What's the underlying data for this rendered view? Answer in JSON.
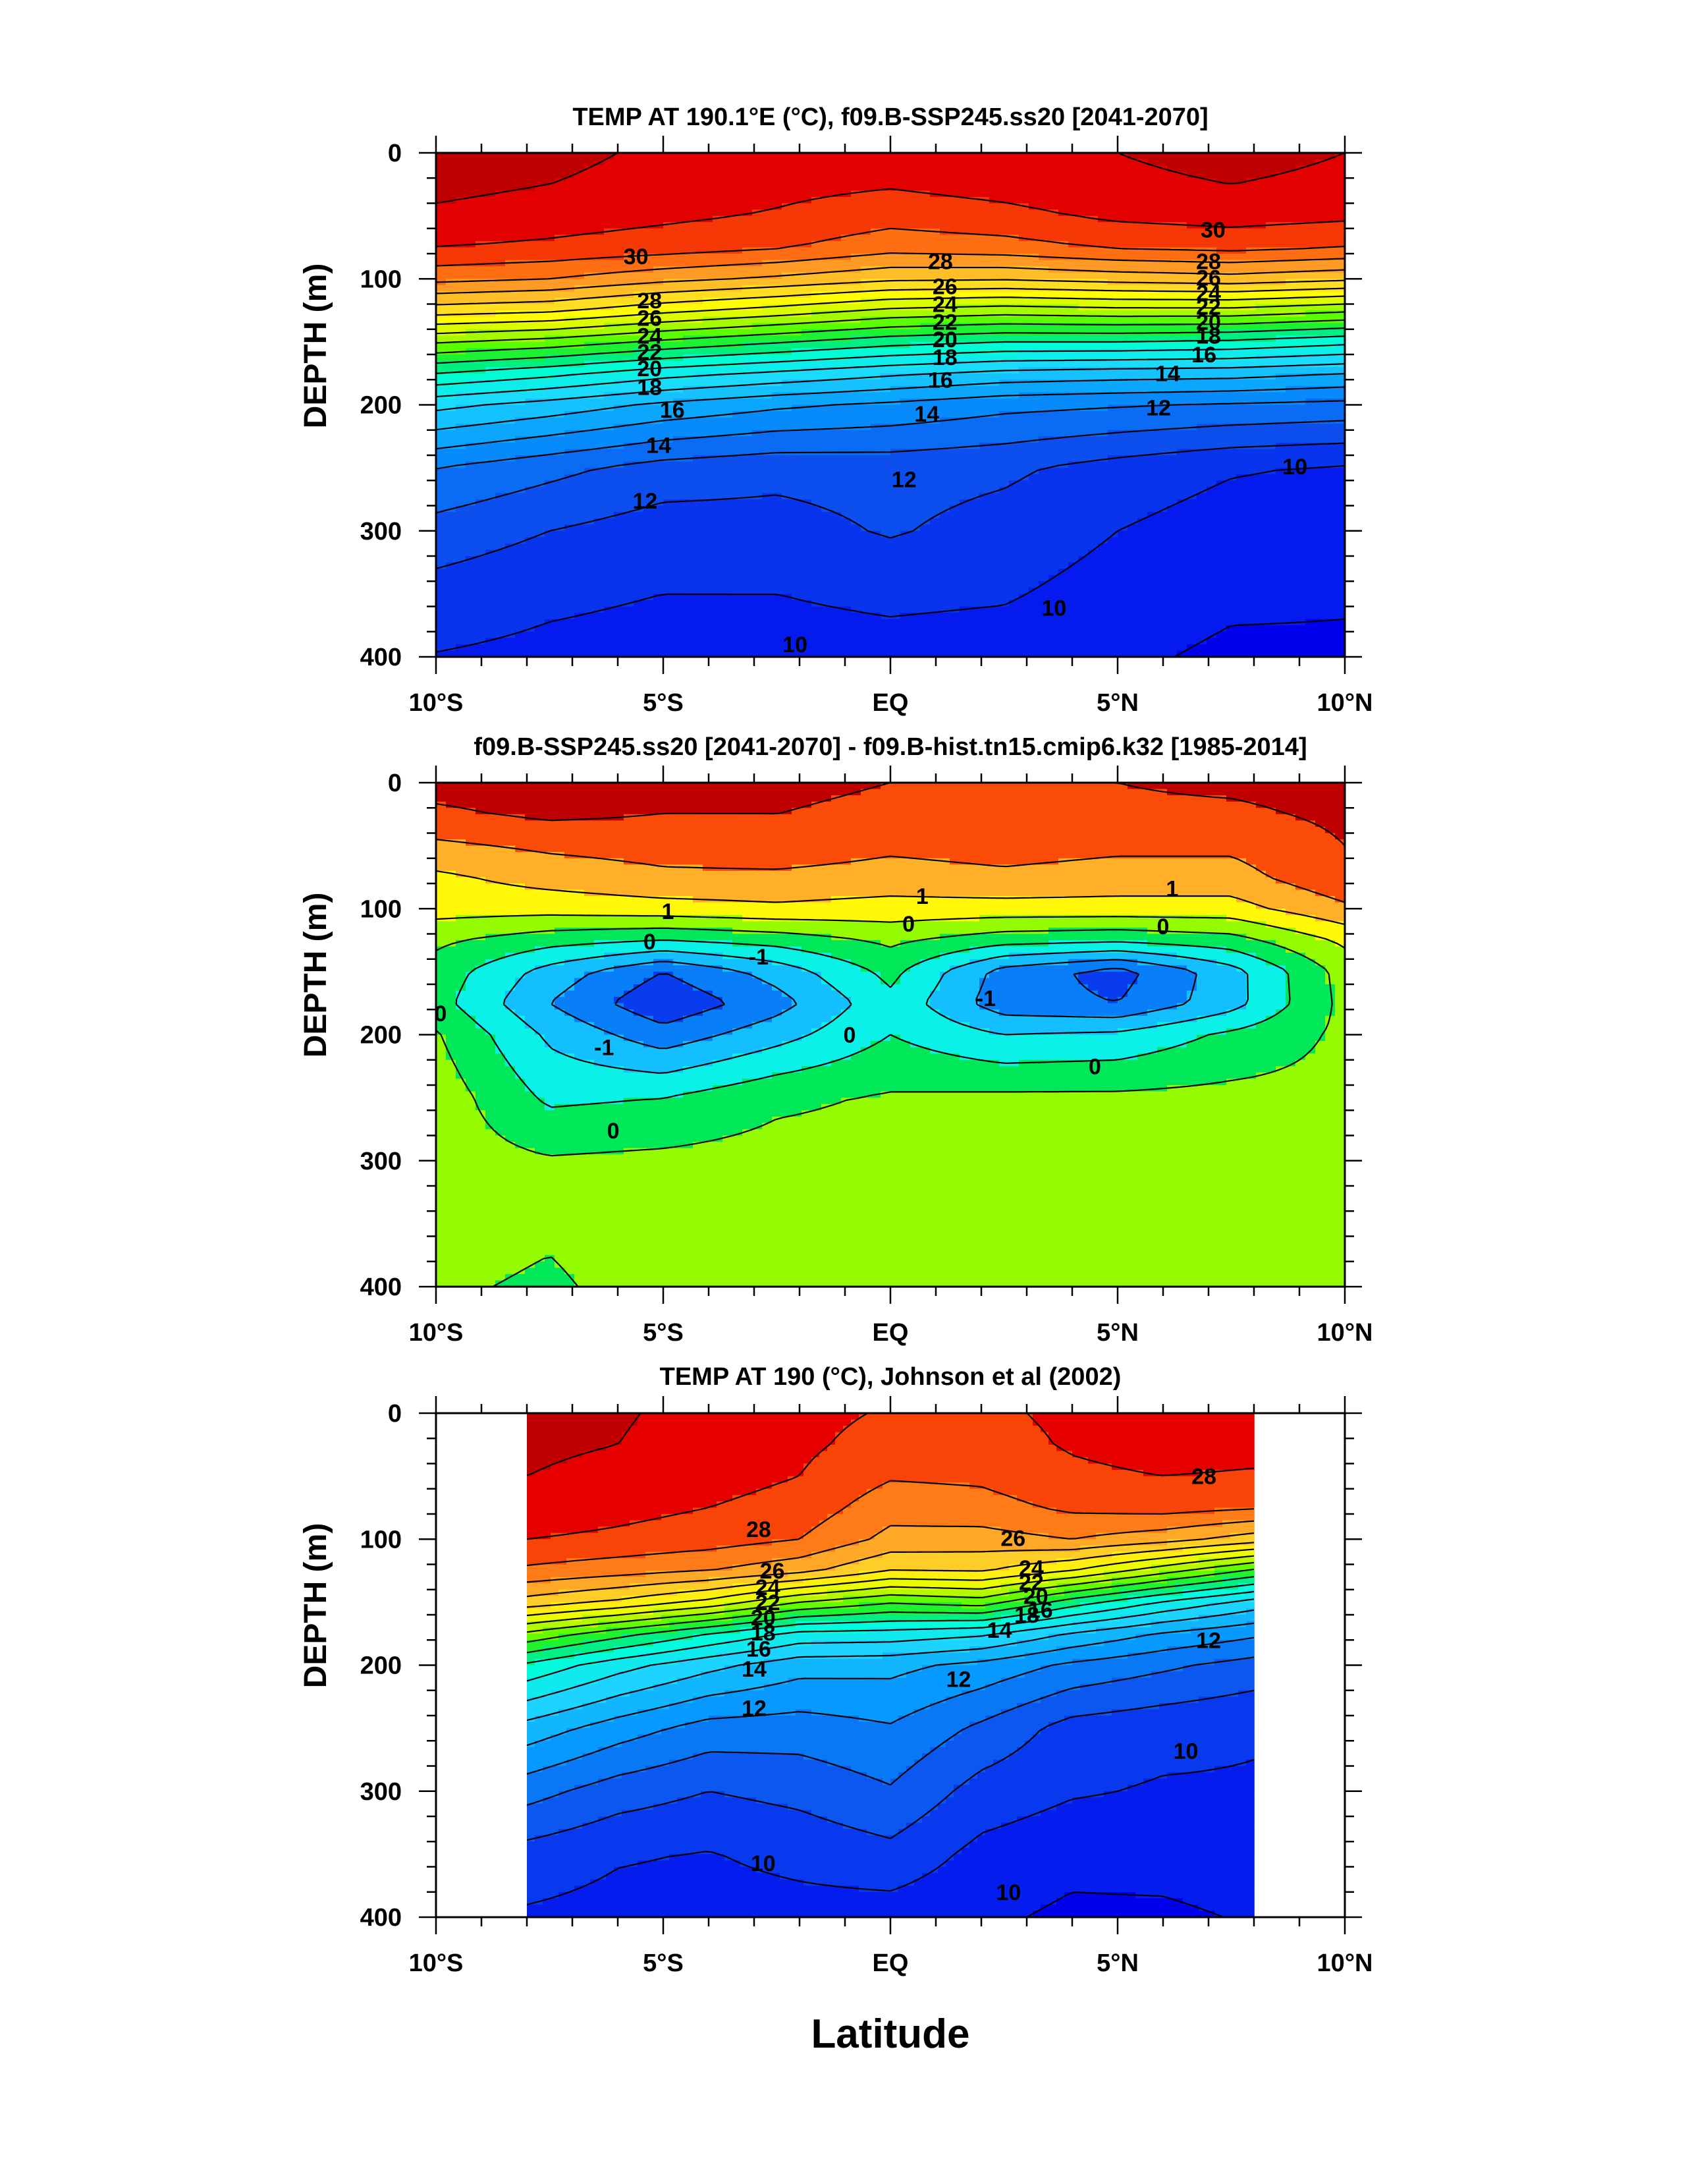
{
  "figure": {
    "xlabel": "Latitude"
  },
  "chart_data": [
    {
      "type": "heatmap",
      "title": "TEMP AT 190.1°E (°C), f09.B-SSP245.ss20 [2041-2070]",
      "ylabel": "DEPTH (m)",
      "xlim": [
        -10,
        10
      ],
      "ylim": [
        400,
        0
      ],
      "x_ticks": [
        "10°S",
        "5°S",
        "EQ",
        "5°N",
        "10°N"
      ],
      "x_tick_values": [
        -10,
        -5,
        0,
        5,
        10
      ],
      "y_ticks": [
        "0",
        "100",
        "200",
        "300",
        "400"
      ],
      "y_tick_values": [
        0,
        100,
        200,
        300,
        400
      ],
      "data_extent": [
        -10,
        10
      ],
      "levels": [
        9,
        10,
        11,
        12,
        13,
        14,
        15,
        16,
        17,
        18,
        19,
        20,
        21,
        22,
        23,
        24,
        25,
        26,
        27,
        28,
        29,
        30,
        31
      ],
      "x": [
        -10,
        -7.5,
        -5,
        -2.5,
        0,
        2.5,
        5,
        7.5,
        10
      ],
      "depth": [
        0,
        25,
        50,
        75,
        100,
        125,
        150,
        175,
        200,
        250,
        300,
        350,
        400
      ],
      "values": [
        [
          31.5,
          31.3,
          30.8,
          30.5,
          30.3,
          30.6,
          31.0,
          31.3,
          31.0
        ],
        [
          31.3,
          31.0,
          30.6,
          30.3,
          30.1,
          30.4,
          30.8,
          31.0,
          30.8
        ],
        [
          30.8,
          30.5,
          30.2,
          29.9,
          29.4,
          29.7,
          30.2,
          30.4,
          30.2
        ],
        [
          30.0,
          29.8,
          29.5,
          29.1,
          28.4,
          28.6,
          29.1,
          29.3,
          29.0
        ],
        [
          28.3,
          28.0,
          27.3,
          26.8,
          26.2,
          26.1,
          26.4,
          26.6,
          26.2
        ],
        [
          25.5,
          25.2,
          24.3,
          23.6,
          22.8,
          22.5,
          22.7,
          22.7,
          22.2
        ],
        [
          22.1,
          21.6,
          20.8,
          20.1,
          19.4,
          19.0,
          19.0,
          18.8,
          18.3
        ],
        [
          19.0,
          18.3,
          17.4,
          16.8,
          16.2,
          15.7,
          15.5,
          15.4,
          15.0
        ],
        [
          16.3,
          15.6,
          14.8,
          14.2,
          13.8,
          13.3,
          13.1,
          12.9,
          12.7
        ],
        [
          13.0,
          12.3,
          11.6,
          11.3,
          11.4,
          11.2,
          10.6,
          10.1,
          9.9
        ],
        [
          11.6,
          11.0,
          10.5,
          10.6,
          11.1,
          10.6,
          10.0,
          9.5,
          9.4
        ],
        [
          10.6,
          10.2,
          10.0,
          10.0,
          10.2,
          10.1,
          9.6,
          9.2,
          9.1
        ],
        [
          9.95,
          9.75,
          9.62,
          9.6,
          9.65,
          9.55,
          9.2,
          8.8,
          8.85
        ]
      ],
      "contour_labels": [
        {
          "text": "30",
          "x": -5.6,
          "y": 82
        },
        {
          "text": "28",
          "x": -5.3,
          "y": 117
        },
        {
          "text": "26",
          "x": -5.3,
          "y": 131
        },
        {
          "text": "24",
          "x": -5.3,
          "y": 145
        },
        {
          "text": "22",
          "x": -5.3,
          "y": 158
        },
        {
          "text": "20",
          "x": -5.3,
          "y": 171
        },
        {
          "text": "18",
          "x": -5.3,
          "y": 186
        },
        {
          "text": "16",
          "x": -4.8,
          "y": 204
        },
        {
          "text": "14",
          "x": -5.1,
          "y": 232
        },
        {
          "text": "12",
          "x": -5.4,
          "y": 276
        },
        {
          "text": "28",
          "x": 1.1,
          "y": 86
        },
        {
          "text": "26",
          "x": 1.2,
          "y": 106
        },
        {
          "text": "24",
          "x": 1.2,
          "y": 120
        },
        {
          "text": "22",
          "x": 1.2,
          "y": 134
        },
        {
          "text": "20",
          "x": 1.2,
          "y": 148
        },
        {
          "text": "18",
          "x": 1.2,
          "y": 162
        },
        {
          "text": "16",
          "x": 1.1,
          "y": 180
        },
        {
          "text": "14",
          "x": 0.8,
          "y": 207
        },
        {
          "text": "12",
          "x": 0.3,
          "y": 259
        },
        {
          "text": "30",
          "x": 7.1,
          "y": 61
        },
        {
          "text": "28",
          "x": 7.0,
          "y": 86
        },
        {
          "text": "26",
          "x": 7.0,
          "y": 99
        },
        {
          "text": "24",
          "x": 7.0,
          "y": 111
        },
        {
          "text": "22",
          "x": 7.0,
          "y": 122
        },
        {
          "text": "20",
          "x": 7.0,
          "y": 134
        },
        {
          "text": "18",
          "x": 7.0,
          "y": 145
        },
        {
          "text": "16",
          "x": 6.9,
          "y": 160
        },
        {
          "text": "14",
          "x": 6.1,
          "y": 175
        },
        {
          "text": "12",
          "x": 5.9,
          "y": 202
        },
        {
          "text": "10",
          "x": 8.9,
          "y": 249
        },
        {
          "text": "10",
          "x": 3.6,
          "y": 361
        },
        {
          "text": "10",
          "x": -2.1,
          "y": 390
        }
      ]
    },
    {
      "type": "heatmap",
      "title": "f09.B-SSP245.ss20 [2041-2070] - f09.B-hist.tn15.cmip6.k32 [1985-2014]",
      "ylabel": "DEPTH (m)",
      "xlim": [
        -10,
        10
      ],
      "ylim": [
        400,
        0
      ],
      "x_ticks": [
        "10°S",
        "5°S",
        "EQ",
        "5°N",
        "10°N"
      ],
      "x_tick_values": [
        -10,
        -5,
        0,
        5,
        10
      ],
      "y_ticks": [
        "0",
        "100",
        "200",
        "300",
        "400"
      ],
      "y_tick_values": [
        0,
        100,
        200,
        300,
        400
      ],
      "data_extent": [
        -10,
        10
      ],
      "levels": [
        -2.5,
        -2,
        -1.5,
        -1,
        -0.5,
        0,
        0.5,
        1,
        1.5,
        2
      ],
      "x": [
        -10,
        -7.5,
        -5,
        -2.5,
        0,
        2.5,
        5,
        7.5,
        10
      ],
      "depth": [
        0,
        25,
        50,
        75,
        100,
        125,
        150,
        175,
        200,
        250,
        300,
        350,
        400
      ],
      "values": [
        [
          2.2,
          2.3,
          2.1,
          2.1,
          2.0,
          2.0,
          2.0,
          2.1,
          2.2
        ],
        [
          1.9,
          2.1,
          2.0,
          2.0,
          1.9,
          1.9,
          1.9,
          1.9,
          2.1
        ],
        [
          1.4,
          1.6,
          1.7,
          1.8,
          1.6,
          1.7,
          1.6,
          1.6,
          2.0
        ],
        [
          0.9,
          1.2,
          1.4,
          1.4,
          1.3,
          1.4,
          1.3,
          1.3,
          1.9
        ],
        [
          0.7,
          0.7,
          0.8,
          0.9,
          0.8,
          0.8,
          0.8,
          0.8,
          1.4
        ],
        [
          0.1,
          -0.3,
          -0.5,
          -0.3,
          0.1,
          -0.3,
          -0.4,
          -0.2,
          0.6
        ],
        [
          -0.2,
          -1.2,
          -2.0,
          -1.3,
          -0.35,
          -1.7,
          -2.2,
          -1.2,
          0.2
        ],
        [
          -0.3,
          -1.5,
          -2.4,
          -1.7,
          -0.65,
          -1.8,
          -2.0,
          -1.2,
          0.15
        ],
        [
          0.05,
          -1.1,
          -1.8,
          -1.2,
          -0.5,
          -1.0,
          -0.9,
          -0.4,
          0.1
        ],
        [
          0.3,
          -0.6,
          -0.5,
          -0.1,
          0.05,
          0.1,
          0.1,
          0.15,
          0.15
        ],
        [
          0.25,
          0.05,
          0.12,
          0.2,
          0.2,
          0.2,
          0.2,
          0.2,
          0.2
        ],
        [
          0.15,
          0.05,
          0.2,
          0.2,
          0.2,
          0.2,
          0.2,
          0.2,
          0.2
        ],
        [
          0.05,
          -0.05,
          0.15,
          0.2,
          0.2,
          0.2,
          0.2,
          0.2,
          0.2
        ]
      ],
      "contour_labels": [
        {
          "text": "1",
          "x": -4.9,
          "y": 102
        },
        {
          "text": "1",
          "x": 0.7,
          "y": 90
        },
        {
          "text": "1",
          "x": 6.2,
          "y": 84
        },
        {
          "text": "0",
          "x": -5.3,
          "y": 126
        },
        {
          "text": "0",
          "x": 0.4,
          "y": 112
        },
        {
          "text": "0",
          "x": 6.0,
          "y": 114
        },
        {
          "text": "-1",
          "x": -2.9,
          "y": 138
        },
        {
          "text": "-1",
          "x": -6.3,
          "y": 210
        },
        {
          "text": "-1",
          "x": 2.1,
          "y": 171
        },
        {
          "text": "0",
          "x": -0.9,
          "y": 200
        },
        {
          "text": "0",
          "x": 4.5,
          "y": 225
        },
        {
          "text": "0",
          "x": -6.1,
          "y": 276
        },
        {
          "text": "0",
          "x": -9.9,
          "y": 183
        }
      ]
    },
    {
      "type": "heatmap",
      "title": "TEMP AT 190 (°C), Johnson et al (2002)",
      "ylabel": "DEPTH (m)",
      "xlim": [
        -10,
        10
      ],
      "ylim": [
        400,
        0
      ],
      "x_ticks": [
        "10°S",
        "5°S",
        "EQ",
        "5°N",
        "10°N"
      ],
      "x_tick_values": [
        -10,
        -5,
        0,
        5,
        10
      ],
      "y_ticks": [
        "0",
        "100",
        "200",
        "300",
        "400"
      ],
      "y_tick_values": [
        0,
        100,
        200,
        300,
        400
      ],
      "data_extent": [
        -8,
        8
      ],
      "levels": [
        9,
        10,
        11,
        12,
        13,
        14,
        15,
        16,
        17,
        18,
        19,
        20,
        21,
        22,
        23,
        24,
        25,
        26,
        27,
        28,
        29
      ],
      "x": [
        -8,
        -6,
        -4,
        -2,
        0,
        2,
        4,
        6,
        8
      ],
      "depth": [
        0,
        25,
        50,
        75,
        100,
        125,
        150,
        175,
        200,
        250,
        300,
        350,
        400
      ],
      "values": [
        [
          29.3,
          29.1,
          28.7,
          28.3,
          27.9,
          27.8,
          28.2,
          28.6,
          28.6
        ],
        [
          29.2,
          29.0,
          28.6,
          28.2,
          27.6,
          27.6,
          28.1,
          28.4,
          28.3
        ],
        [
          29.0,
          28.7,
          28.4,
          28.0,
          27.1,
          27.2,
          27.8,
          28.0,
          27.9
        ],
        [
          28.6,
          28.3,
          28.0,
          27.6,
          26.4,
          26.6,
          27.2,
          27.4,
          27.1
        ],
        [
          28.0,
          27.8,
          27.5,
          27.0,
          25.7,
          25.6,
          26.0,
          25.4,
          24.5
        ],
        [
          26.8,
          26.4,
          26.0,
          25.3,
          24.0,
          24.1,
          23.0,
          21.4,
          19.8
        ],
        [
          24.6,
          23.8,
          22.7,
          21.0,
          20.1,
          20.5,
          18.5,
          16.9,
          15.6
        ],
        [
          20.8,
          19.4,
          18.0,
          16.7,
          16.6,
          16.2,
          14.9,
          13.9,
          13.2
        ],
        [
          17.8,
          16.4,
          15.3,
          14.4,
          14.3,
          13.7,
          12.8,
          12.2,
          11.6
        ],
        [
          14.6,
          13.5,
          12.6,
          12.5,
          12.9,
          11.8,
          10.6,
          10.3,
          10.1
        ],
        [
          12.4,
          11.5,
          11.0,
          11.3,
          11.9,
          10.6,
          10.1,
          9.9,
          9.9
        ],
        [
          10.6,
          10.1,
          9.95,
          10.3,
          10.7,
          9.7,
          9.3,
          9.4,
          9.6
        ],
        [
          9.85,
          9.65,
          9.55,
          9.6,
          9.5,
          9.2,
          8.8,
          8.8,
          9.1
        ]
      ],
      "contour_labels": [
        {
          "text": "28",
          "x": -2.9,
          "y": 92
        },
        {
          "text": "26",
          "x": -2.6,
          "y": 125
        },
        {
          "text": "24",
          "x": -2.7,
          "y": 138
        },
        {
          "text": "22",
          "x": -2.7,
          "y": 150
        },
        {
          "text": "20",
          "x": -2.8,
          "y": 162
        },
        {
          "text": "18",
          "x": -2.8,
          "y": 174
        },
        {
          "text": "16",
          "x": -2.9,
          "y": 187
        },
        {
          "text": "14",
          "x": -3.0,
          "y": 203
        },
        {
          "text": "12",
          "x": -3.0,
          "y": 234
        },
        {
          "text": "26",
          "x": 2.7,
          "y": 99
        },
        {
          "text": "24",
          "x": 3.1,
          "y": 123
        },
        {
          "text": "22",
          "x": 3.1,
          "y": 134
        },
        {
          "text": "20",
          "x": 3.2,
          "y": 145
        },
        {
          "text": "18",
          "x": 3.0,
          "y": 160
        },
        {
          "text": "16",
          "x": 3.3,
          "y": 156
        },
        {
          "text": "14",
          "x": 2.4,
          "y": 172
        },
        {
          "text": "12",
          "x": 1.5,
          "y": 211
        },
        {
          "text": "12",
          "x": 7.0,
          "y": 180
        },
        {
          "text": "28",
          "x": 6.9,
          "y": 50
        },
        {
          "text": "10",
          "x": 6.5,
          "y": 268
        },
        {
          "text": "10",
          "x": -2.8,
          "y": 357
        },
        {
          "text": "10",
          "x": 2.6,
          "y": 380
        }
      ]
    }
  ]
}
